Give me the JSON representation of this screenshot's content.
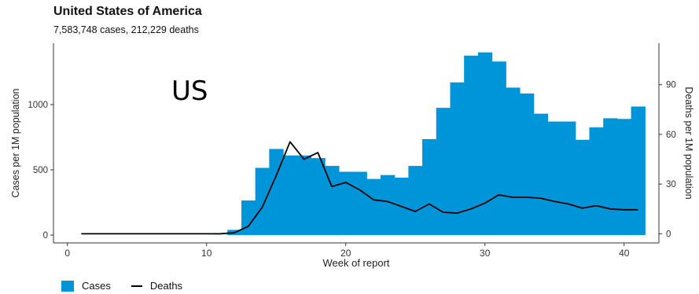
{
  "chart_data": {
    "type": "bar",
    "title": "United States of America",
    "subtitle": "7,583,748 cases, 212,229 deaths",
    "annotation": "US",
    "xlabel": "Week of report",
    "ylabel": "Cases per 1M population",
    "y2label": "Deaths per 1M population",
    "xlim": [
      -1,
      42.5
    ],
    "ylim": [
      -60,
      1470
    ],
    "y2lim": [
      -5.5,
      115
    ],
    "xticks": [
      0,
      10,
      20,
      30,
      40
    ],
    "yticks": [
      0,
      500,
      1000
    ],
    "y2ticks": [
      0,
      30,
      60,
      90
    ],
    "grid": false,
    "legend_position": "bottom-left",
    "colors": {
      "cases": "#0094d9",
      "deaths": "#000000"
    },
    "series": [
      {
        "name": "Cases",
        "type": "bar",
        "axis": "left",
        "x": [
          1,
          2,
          3,
          4,
          5,
          6,
          7,
          8,
          9,
          10,
          11,
          12,
          13,
          14,
          15,
          16,
          17,
          18,
          19,
          20,
          21,
          22,
          23,
          24,
          25,
          26,
          27,
          28,
          29,
          30,
          31,
          32,
          33,
          34,
          35,
          36,
          37,
          38,
          39,
          40,
          41
        ],
        "values": [
          0,
          0,
          0,
          0,
          0,
          0,
          0,
          0,
          0,
          0,
          1,
          40,
          265,
          515,
          660,
          610,
          610,
          590,
          530,
          485,
          485,
          430,
          460,
          440,
          530,
          735,
          975,
          1170,
          1375,
          1400,
          1330,
          1130,
          1085,
          930,
          870,
          870,
          730,
          825,
          895,
          890,
          985
        ]
      },
      {
        "name": "Deaths",
        "type": "line",
        "axis": "right",
        "x": [
          1,
          2,
          3,
          4,
          5,
          6,
          7,
          8,
          9,
          10,
          11,
          12,
          13,
          14,
          15,
          16,
          17,
          18,
          19,
          20,
          21,
          22,
          23,
          24,
          25,
          26,
          27,
          28,
          29,
          30,
          31,
          32,
          33,
          34,
          35,
          36,
          37,
          38,
          39,
          40,
          41
        ],
        "values": [
          0,
          0,
          0,
          0,
          0,
          0,
          0,
          0,
          0,
          0,
          0.05,
          0.6,
          4.5,
          16,
          35,
          55.5,
          45,
          49,
          28.5,
          31,
          26.5,
          20.5,
          19.5,
          16.5,
          13.5,
          18,
          13,
          12.5,
          15,
          18.5,
          23.5,
          22,
          22,
          21.5,
          19.5,
          18,
          15.5,
          17,
          15,
          14.5,
          14.5
        ]
      }
    ]
  }
}
